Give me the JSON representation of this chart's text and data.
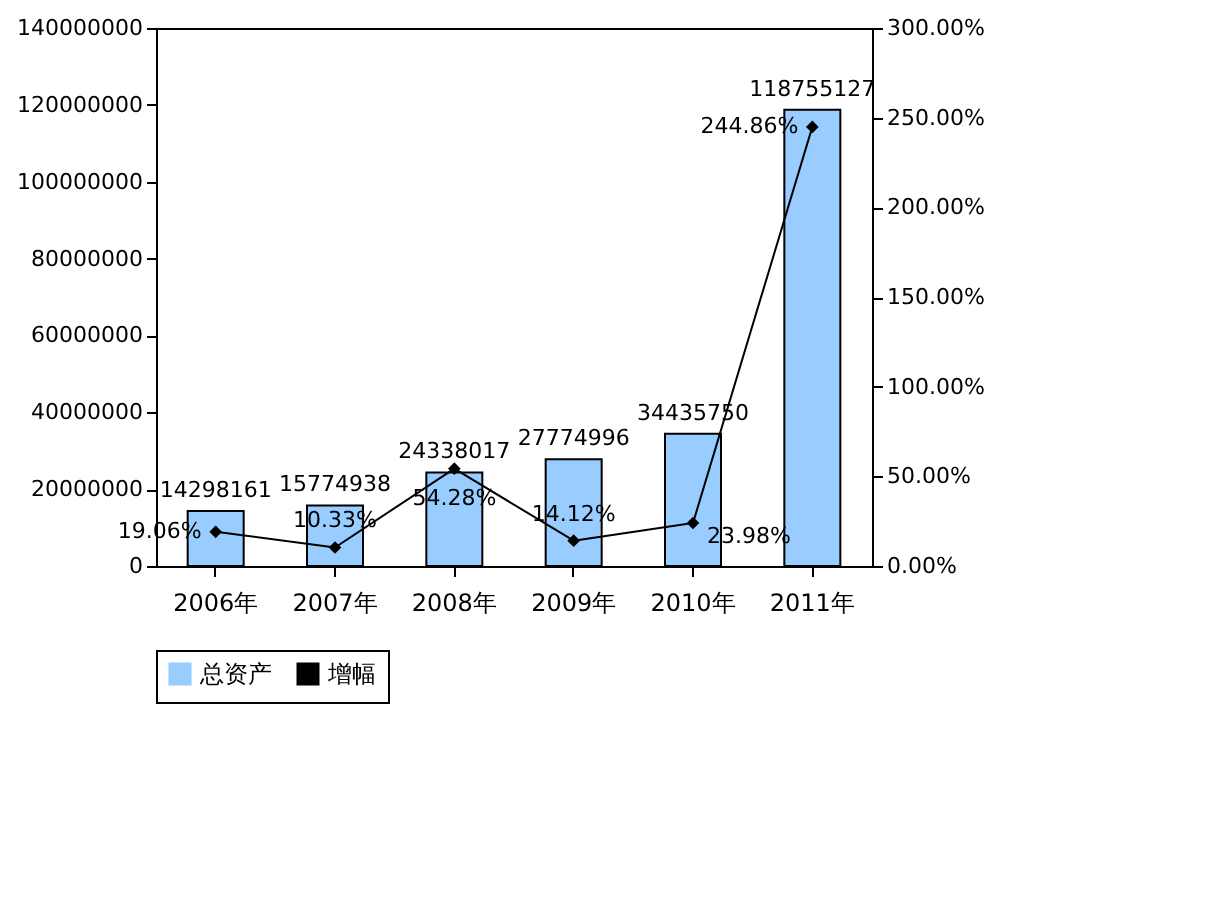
{
  "chart_data": {
    "type": "bar",
    "categories": [
      "2006年",
      "2007年",
      "2008年",
      "2009年",
      "2010年",
      "2011年"
    ],
    "series": [
      {
        "name": "总资产",
        "color": "#99ccff",
        "values": [
          14298161,
          15774938,
          24338017,
          27774996,
          34435750,
          118755127
        ],
        "data_labels": true
      },
      {
        "name": "增幅",
        "type": "line",
        "axis": "y2",
        "color": "#000000",
        "marker": "diamond",
        "values": [
          19.06,
          10.33,
          54.28,
          14.12,
          23.98,
          244.86
        ],
        "value_labels": [
          "19.06%",
          "10.33%",
          "54.28%",
          "14.12%",
          "23.98%",
          "244.86%"
        ]
      }
    ],
    "ylim": [
      0,
      140000000
    ],
    "yticks": [
      0,
      20000000,
      40000000,
      60000000,
      80000000,
      100000000,
      120000000,
      140000000
    ],
    "y2lim": [
      0,
      300
    ],
    "y2ticks": [
      {
        "value": 0,
        "label": "0.00%"
      },
      {
        "value": 50,
        "label": "50.00%"
      },
      {
        "value": 100,
        "label": "100.00%"
      },
      {
        "value": 150,
        "label": "150.00%"
      },
      {
        "value": 200,
        "label": "200.00%"
      },
      {
        "value": 250,
        "label": "250.00%"
      },
      {
        "value": 300,
        "label": "300.00%"
      }
    ],
    "grid": false,
    "legend": "bottom"
  }
}
